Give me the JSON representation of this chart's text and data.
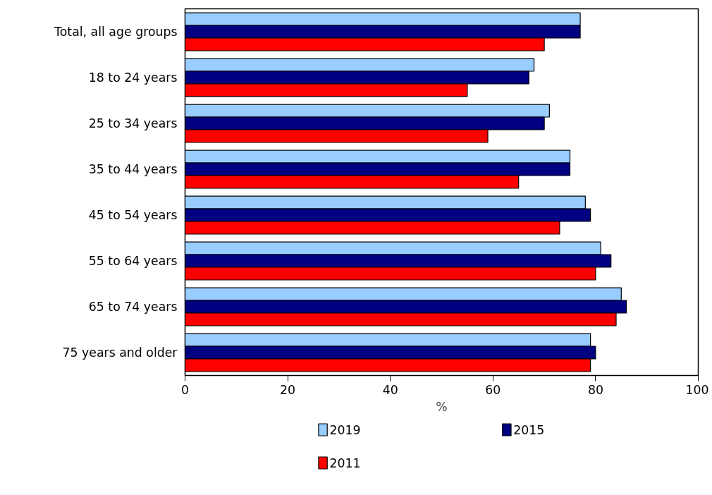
{
  "chart_data": {
    "type": "bar",
    "orientation": "horizontal",
    "xlabel": "%",
    "categories": [
      "Total, all age groups",
      "18 to 24 years",
      "25 to 34 years",
      "35 to 44 years",
      "45 to 54 years",
      "55 to 64 years",
      "65 to 74 years",
      "75 years and older"
    ],
    "series": [
      {
        "name": "2019",
        "color": "#99ccff",
        "values": [
          77,
          68,
          71,
          75,
          78,
          81,
          85,
          79
        ]
      },
      {
        "name": "2015",
        "color": "#000080",
        "values": [
          77,
          67,
          70,
          75,
          79,
          83,
          86,
          80
        ]
      },
      {
        "name": "2011",
        "color": "#ff0000",
        "values": [
          70,
          55,
          59,
          65,
          73,
          80,
          84,
          79
        ]
      }
    ],
    "xlim": [
      0,
      100
    ],
    "xticks": [
      0,
      20,
      40,
      60,
      80,
      100
    ],
    "grid": false,
    "legend": "bottom"
  }
}
